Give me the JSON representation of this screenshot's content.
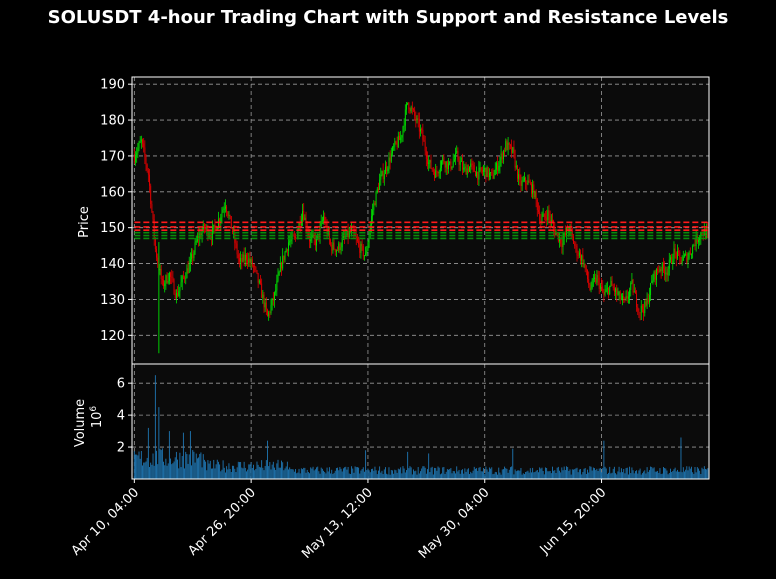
{
  "chart_data": {
    "type": "candlestick",
    "title": "SOLUSDT 4-hour Trading Chart with Support and Resistance Levels",
    "price_panel": {
      "ylabel": "Price",
      "ylim": [
        112,
        192
      ],
      "yticks": [
        120,
        130,
        140,
        150,
        160,
        170,
        180,
        190
      ],
      "resistance_levels": [
        151.5,
        150.2,
        149.3
      ],
      "support_levels": [
        148.6,
        147.8,
        147.0
      ],
      "close_path": [
        [
          "Apr 10, 04:00",
          170
        ],
        [
          "Apr 11, 04:00",
          174
        ],
        [
          "Apr 12, 04:00",
          165
        ],
        [
          "Apr 13, 04:00",
          144
        ],
        [
          "Apr 14, 04:00",
          134
        ],
        [
          "Apr 15, 04:00",
          137
        ],
        [
          "Apr 16, 04:00",
          131
        ],
        [
          "Apr 17, 04:00",
          136
        ],
        [
          "Apr 18, 04:00",
          140
        ],
        [
          "Apr 19, 04:00",
          147
        ],
        [
          "Apr 20, 04:00",
          150
        ],
        [
          "Apr 21, 04:00",
          148
        ],
        [
          "Apr 22, 04:00",
          152
        ],
        [
          "Apr 23, 04:00",
          157
        ],
        [
          "Apr 24, 04:00",
          149
        ],
        [
          "Apr 25, 04:00",
          140
        ],
        [
          "Apr 26, 04:00",
          142
        ],
        [
          "Apr 27, 04:00",
          139
        ],
        [
          "Apr 28, 04:00",
          133
        ],
        [
          "Apr 29, 04:00",
          125
        ],
        [
          "Apr 30, 04:00",
          131
        ],
        [
          "May 1, 04:00",
          140
        ],
        [
          "May 2, 04:00",
          146
        ],
        [
          "May 3, 04:00",
          147
        ],
        [
          "May 4, 04:00",
          155
        ],
        [
          "May 5, 04:00",
          147
        ],
        [
          "May 6, 04:00",
          146
        ],
        [
          "May 7, 04:00",
          153
        ],
        [
          "May 8, 04:00",
          145
        ],
        [
          "May 9, 04:00",
          144
        ],
        [
          "May 10, 04:00",
          147
        ],
        [
          "May 11, 04:00",
          149
        ],
        [
          "May 12, 04:00",
          145
        ],
        [
          "May 13, 04:00",
          142
        ],
        [
          "May 14, 04:00",
          155
        ],
        [
          "May 15, 04:00",
          163
        ],
        [
          "May 16, 04:00",
          167
        ],
        [
          "May 17, 04:00",
          172
        ],
        [
          "May 18, 04:00",
          175
        ],
        [
          "May 19, 04:00",
          185
        ],
        [
          "May 20, 04:00",
          181
        ],
        [
          "May 21, 04:00",
          176
        ],
        [
          "May 22, 04:00",
          168
        ],
        [
          "May 23, 04:00",
          165
        ],
        [
          "May 24, 04:00",
          169
        ],
        [
          "May 25, 04:00",
          167
        ],
        [
          "May 26, 04:00",
          170
        ],
        [
          "May 27, 04:00",
          166
        ],
        [
          "May 28, 04:00",
          167
        ],
        [
          "May 29, 04:00",
          165
        ],
        [
          "May 30, 04:00",
          166
        ],
        [
          "May 31, 04:00",
          164
        ],
        [
          "Jun 1, 04:00",
          168
        ],
        [
          "Jun 2, 04:00",
          173
        ],
        [
          "Jun 3, 04:00",
          171
        ],
        [
          "Jun 4, 04:00",
          162
        ],
        [
          "Jun 5, 04:00",
          163
        ],
        [
          "Jun 6, 04:00",
          160
        ],
        [
          "Jun 7, 04:00",
          152
        ],
        [
          "Jun 8, 04:00",
          154
        ],
        [
          "Jun 9, 04:00",
          149
        ],
        [
          "Jun 10, 04:00",
          146
        ],
        [
          "Jun 11, 04:00",
          150
        ],
        [
          "Jun 12, 04:00",
          144
        ],
        [
          "Jun 13, 04:00",
          141
        ],
        [
          "Jun 14, 04:00",
          133
        ],
        [
          "Jun 15, 04:00",
          136
        ],
        [
          "Jun 16, 04:00",
          131
        ],
        [
          "Jun 17, 04:00",
          134
        ],
        [
          "Jun 18, 04:00",
          131
        ],
        [
          "Jun 19, 04:00",
          129
        ],
        [
          "Jun 20, 04:00",
          134
        ],
        [
          "Jun 21, 04:00",
          127
        ],
        [
          "Jun 22, 04:00",
          128
        ],
        [
          "Jun 23, 04:00",
          136
        ],
        [
          "Jun 24, 04:00",
          139
        ],
        [
          "Jun 25, 04:00",
          138
        ],
        [
          "Jun 26, 04:00",
          143
        ],
        [
          "Jun 27, 04:00",
          141
        ],
        [
          "Jun 28, 04:00",
          142
        ],
        [
          "Jun 29, 04:00",
          146
        ],
        [
          "Jun 30, 04:00",
          149
        ],
        [
          "Jul 1, 00:00",
          148
        ]
      ]
    },
    "volume_panel": {
      "ylabel": "Volume",
      "scale_label": "10",
      "scale_exponent": "6",
      "ylim": [
        0,
        7.2
      ],
      "yticks": [
        2,
        4,
        6
      ],
      "peaks": [
        [
          "Apr 12, 04:00",
          3.2
        ],
        [
          "Apr 13, 04:00",
          6.5
        ],
        [
          "Apr 13, 16:00",
          4.5
        ],
        [
          "Apr 15, 04:00",
          3.0
        ],
        [
          "Apr 17, 04:00",
          2.9
        ],
        [
          "Apr 18, 04:00",
          3.0
        ],
        [
          "Apr 29, 04:00",
          2.4
        ],
        [
          "May 13, 04:00",
          1.8
        ],
        [
          "May 19, 04:00",
          1.7
        ],
        [
          "May 22, 04:00",
          1.6
        ],
        [
          "Jun 3, 04:00",
          1.9
        ],
        [
          "Jun 16, 04:00",
          2.4
        ],
        [
          "Jun 27, 04:00",
          2.6
        ]
      ],
      "base_level": 0.6
    },
    "x_ticks": [
      "Apr 10, 04:00",
      "Apr 26, 20:00",
      "May 13, 12:00",
      "May 30, 04:00",
      "Jun 15, 20:00"
    ],
    "x_range": [
      "Apr 9, 20:00",
      "Jul 1, 04:00"
    ],
    "grid": true,
    "colors": {
      "background": "#000000",
      "panel": "#0b0b0b",
      "up": "#00e000",
      "down": "#e00000",
      "volume": "#1f77b4",
      "resistance": "#ff1a1a",
      "support": "#0a8c0a",
      "grid": "#9a9a9a",
      "text": "#ffffff"
    }
  }
}
